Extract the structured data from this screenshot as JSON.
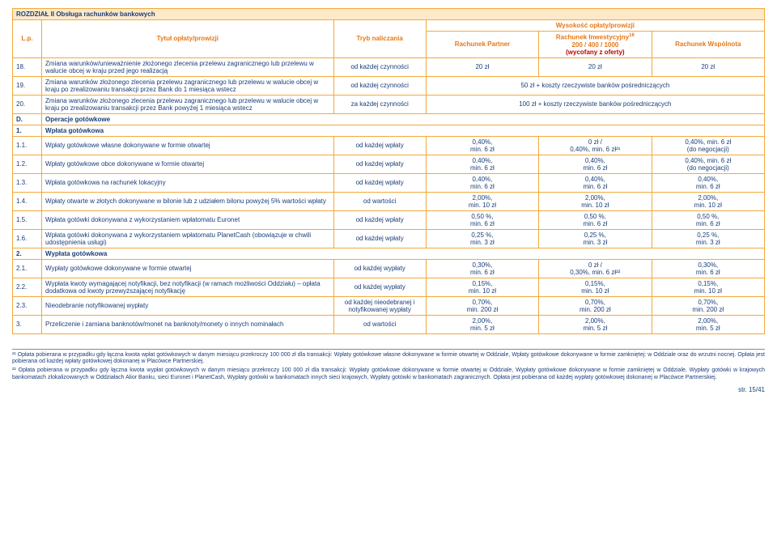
{
  "section_title": "ROZDZIAŁ II Obsługa rachunków bankowych",
  "header": {
    "lp": "L.p.",
    "title": "Tytuł opłaty/prowizji",
    "tryb": "Tryb naliczania",
    "top_right": "Wysokość opłaty/prowizji",
    "col1": "Rachunek Partner",
    "col2_a": "Rachunek Inwestycyjny",
    "col2_b": "200 / 400 / 1000",
    "col2_c": "(wycofany z oferty)",
    "col3": "Rachunek Wspólnota"
  },
  "rows": {
    "r18": {
      "lp": "18.",
      "title": "Zmiana warunków/unieważnienie złożonego zlecenia przelewu zagranicznego lub przelewu w walucie obcej w kraju przed jego realizacją",
      "tryb": "od każdej czynności",
      "c1": "20 zł",
      "c2": "20 zł",
      "c3": "20 zł"
    },
    "r19": {
      "lp": "19.",
      "title": "Zmiana warunków złożonego zlecenia przelewu zagranicznego lub przelewu w walucie obcej w kraju po zrealizowaniu transakcji przez Bank do 1 miesiąca wstecz",
      "tryb": "od każdej czynności",
      "merged": "50 zł + koszty rzeczywiste banków pośredniczących"
    },
    "r20": {
      "lp": "20.",
      "title": "Zmiana warunków złożonego zlecenia przelewu zagranicznego lub przelewu w walucie obcej w kraju po zrealizowaniu transakcji przez Bank powyżej 1 miesiąca wstecz",
      "tryb": "za każdej czynności",
      "merged": "100 zł + koszty rzeczywiste banków pośredniczących"
    },
    "secD": {
      "lp": "D.",
      "title": "Operacje gotówkowe"
    },
    "sec1": {
      "lp": "1.",
      "title": "Wpłata gotówkowa"
    },
    "r1_1": {
      "lp": "1.1.",
      "title": "Wpłaty gotówkowe własne dokonywane w formie otwartej",
      "tryb": "od każdej wpłaty",
      "c1a": "0,40%,",
      "c1b": "min. 6 zł",
      "c2a": "0 zł /",
      "c2b": "0,40%, min. 6 zł²¹",
      "c3a": "0,40%, min. 6 zł",
      "c3b": "(do negocjacji)"
    },
    "r1_2": {
      "lp": "1.2.",
      "title": "Wpłaty gotówkowe obce dokonywane w formie otwartej",
      "tryb": "od każdej wpłaty",
      "c1a": "0,40%,",
      "c1b": "min. 6 zł",
      "c2a": "0,40%,",
      "c2b": "min. 6 zł",
      "c3a": "0,40%, min. 6 zł",
      "c3b": "(do negocjacji)"
    },
    "r1_3": {
      "lp": "1.3.",
      "title": "Wpłata gotówkowa na rachunek lokacyjny",
      "tryb": "od każdej wpłaty",
      "c1a": "0,40%,",
      "c1b": "min. 6 zł",
      "c2a": "0,40%,",
      "c2b": "min. 6 zł",
      "c3a": "0,40%,",
      "c3b": "min. 6 zł"
    },
    "r1_4": {
      "lp": "1.4.",
      "title": "Wpłaty otwarte w złotych dokonywane w bilonie lub z udziałem bilonu powyżej 5% wartości wpłaty",
      "tryb": "od wartości",
      "c1a": "2,00%,",
      "c1b": "min. 10 zł",
      "c2a": "2,00%,",
      "c2b": "min. 10 zł",
      "c3a": "2,00%,",
      "c3b": "min. 10 zł"
    },
    "r1_5": {
      "lp": "1.5.",
      "title": "Wpłata gotówki dokonywana z wykorzystaniem wpłatomatu Euronet",
      "tryb": "od każdej wpłaty",
      "c1a": "0,50 %,",
      "c1b": "min. 6 zł",
      "c2a": "0,50 %,",
      "c2b": "min. 6 zł",
      "c3a": "0,50 %,",
      "c3b": "min. 6 zł"
    },
    "r1_6": {
      "lp": "1.6.",
      "title": "Wpłata gotówki dokonywana z wykorzystaniem wpłatomatu PlanetCash (obowiązuje w chwili udostępnienia usługi)",
      "tryb": "od każdej wpłaty",
      "c1a": "0,25 %,",
      "c1b": "min. 3 zł",
      "c2a": "0,25 %,",
      "c2b": "min. 3 zł",
      "c3a": "0,25 %,",
      "c3b": "min. 3 zł"
    },
    "sec2": {
      "lp": "2.",
      "title": "Wypłata gotówkowa"
    },
    "r2_1": {
      "lp": "2.1.",
      "title": "Wypłaty gotówkowe dokonywane w formie otwartej",
      "tryb": "od każdej wypłaty",
      "c1a": "0,30%,",
      "c1b": "min. 6 zł",
      "c2a": "0 zł /",
      "c2b": "0,30%, min. 6 zł²²",
      "c3a": "0,30%,",
      "c3b": "min. 6 zł"
    },
    "r2_2": {
      "lp": "2.2.",
      "title": "Wypłata kwoty wymagającej notyfikacji, bez notyfikacji (w ramach możliwości Oddziału) – opłata dodatkowa od kwoty przewyższającej notyfikację",
      "tryb": "od każdej wypłaty",
      "c1a": "0,15%,",
      "c1b": "min. 10 zł",
      "c2a": "0,15%,",
      "c2b": "min. 10 zł",
      "c3a": "0,15%,",
      "c3b": "min. 10 zł"
    },
    "r2_3": {
      "lp": "2.3.",
      "title": "Nieodebranie notyfikowanej wypłaty",
      "tryb": "od każdej nieodebranej i notyfikowanej wypłaty",
      "c1a": "0,70%,",
      "c1b": "min. 200 zł",
      "c2a": "0,70%,",
      "c2b": "min. 200 zł",
      "c3a": "0,70%,",
      "c3b": "min. 200 zł"
    },
    "r3": {
      "lp": "3.",
      "title": "Przeliczenie i zamiana banknotów/monet na banknoty/monety o innych nominałach",
      "tryb": "od wartości",
      "c1a": "2,00%,",
      "c1b": "min. 5 zł",
      "c2a": "2,00%,",
      "c2b": "min. 5 zł",
      "c3a": "2,00%,",
      "c3b": "min. 5 zł"
    }
  },
  "footnotes": {
    "f21": "²¹ Opłata pobierana w przypadku gdy łączna kwota wpłat gotówkowych w danym miesiącu przekroczy 100 000 zł dla transakcji: Wpłaty gotówkowe własne dokonywane w formie otwartej w Oddziale, Wpłaty gotówkowe dokonywane w formie zamkniętej: w Oddziale oraz do wrzutni nocnej. Opłata jest pobierana od każdej wpłaty gotówkowej dokonanej w Placówce Partnerskiej.",
    "f22": "²² Opłata pobierana w przypadku gdy łączna kwota wypłat gotówkowych w danym miesiącu przekroczy 100 000 zł dla transakcji: Wypłaty gotówkowe dokonywane w formie otwartej w Oddziale, Wypłaty gotówkowe dokonywane w formie zamkniętej w Oddziale, Wypłaty gotówki w krajowych bankomatach zlokalizowanych w Oddziałach Alior Banku, sieci Euronet i PlanetCash, Wypłaty gotówki w bankomatach innych sieci krajowych, Wypłaty gotówki w bankomatach zagranicznych. Opłata jest pobierana od każdej wypłaty gotówkowej dokonanej w Placówce Partnerskiej."
  },
  "page": "str. 15/41"
}
